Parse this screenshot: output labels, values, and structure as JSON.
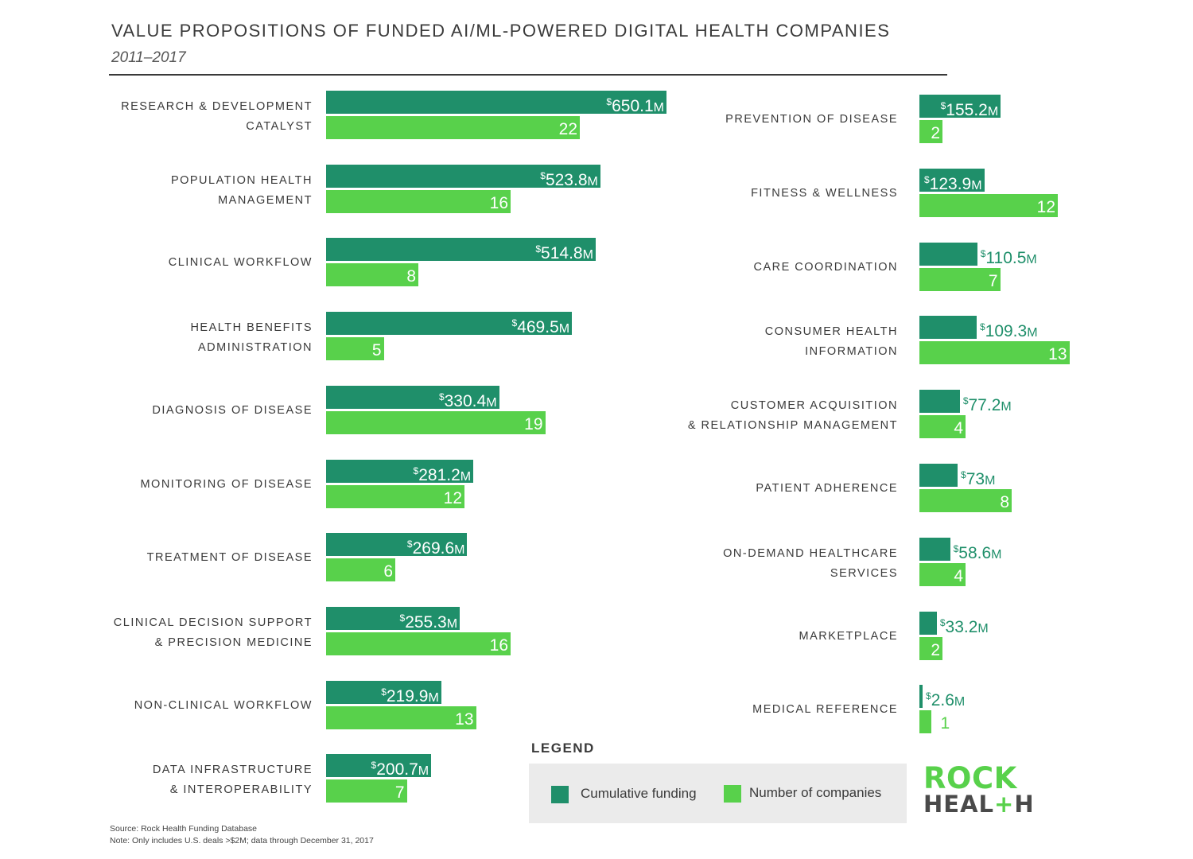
{
  "chart_data": {
    "type": "bar",
    "title": "VALUE PROPOSITIONS OF FUNDED AI/ML-POWERED DIGITAL HEALTH COMPANIES",
    "subtitle": "2011–2017",
    "series": [
      {
        "name": "Cumulative funding",
        "unit": "$M",
        "color": "#1f8f6a"
      },
      {
        "name": "Number of companies",
        "color": "#58d14b"
      }
    ],
    "categories": [
      {
        "label": "RESEARCH & DEVELOPMENT\nCATALYST",
        "funding": 650.1,
        "funding_label": "650.1",
        "companies": 22
      },
      {
        "label": "POPULATION HEALTH\nMANAGEMENT",
        "funding": 523.8,
        "funding_label": "523.8",
        "companies": 16
      },
      {
        "label": "CLINICAL WORKFLOW",
        "funding": 514.8,
        "funding_label": "514.8",
        "companies": 8
      },
      {
        "label": "HEALTH BENEFITS\nADMINISTRATION",
        "funding": 469.5,
        "funding_label": "469.5",
        "companies": 5
      },
      {
        "label": "DIAGNOSIS OF DISEASE",
        "funding": 330.4,
        "funding_label": "330.4",
        "companies": 19
      },
      {
        "label": "MONITORING OF DISEASE",
        "funding": 281.2,
        "funding_label": "281.2",
        "companies": 12
      },
      {
        "label": "TREATMENT OF DISEASE",
        "funding": 269.6,
        "funding_label": "269.6",
        "companies": 6
      },
      {
        "label": "CLINICAL DECISION SUPPORT\n& PRECISION MEDICINE",
        "funding": 255.3,
        "funding_label": "255.3",
        "companies": 16
      },
      {
        "label": "NON-CLINICAL WORKFLOW",
        "funding": 219.9,
        "funding_label": "219.9",
        "companies": 13
      },
      {
        "label": "DATA INFRASTRUCTURE\n& INTEROPERABILITY",
        "funding": 200.7,
        "funding_label": "200.7",
        "companies": 7
      },
      {
        "label": "PREVENTION OF DISEASE",
        "funding": 155.2,
        "funding_label": "155.2",
        "companies": 2
      },
      {
        "label": "FITNESS & WELLNESS",
        "funding": 123.9,
        "funding_label": "123.9",
        "companies": 12
      },
      {
        "label": "CARE COORDINATION",
        "funding": 110.5,
        "funding_label": "110.5",
        "companies": 7
      },
      {
        "label": "CONSUMER HEALTH\nINFORMATION",
        "funding": 109.3,
        "funding_label": "109.3",
        "companies": 13
      },
      {
        "label": "CUSTOMER ACQUISITION\n& RELATIONSHIP MANAGEMENT",
        "funding": 77.2,
        "funding_label": "77.2",
        "companies": 4
      },
      {
        "label": "PATIENT ADHERENCE",
        "funding": 73,
        "funding_label": "73",
        "companies": 8
      },
      {
        "label": "ON-DEMAND HEALTHCARE\nSERVICES",
        "funding": 58.6,
        "funding_label": "58.6",
        "companies": 4
      },
      {
        "label": "MARKETPLACE",
        "funding": 33.2,
        "funding_label": "33.2",
        "companies": 2
      },
      {
        "label": "MEDICAL REFERENCE",
        "funding": 2.6,
        "funding_label": "2.6",
        "companies": 1
      }
    ],
    "currency_symbol": "$",
    "unit_suffix": "M",
    "legend_title": "LEGEND",
    "legend": [
      "Cumulative funding",
      "Number of companies"
    ]
  },
  "branding": {
    "line1": "ROCK",
    "line2_a": "HEAL",
    "line2_plus": "+",
    "line2_b": "H"
  },
  "footer": {
    "source": "Source: Rock Health Funding Database",
    "note": "Note: Only includes U.S. deals >$2M; data through December 31, 2017"
  },
  "colors": {
    "funding": "#1f8f6a",
    "companies": "#58d14b"
  }
}
